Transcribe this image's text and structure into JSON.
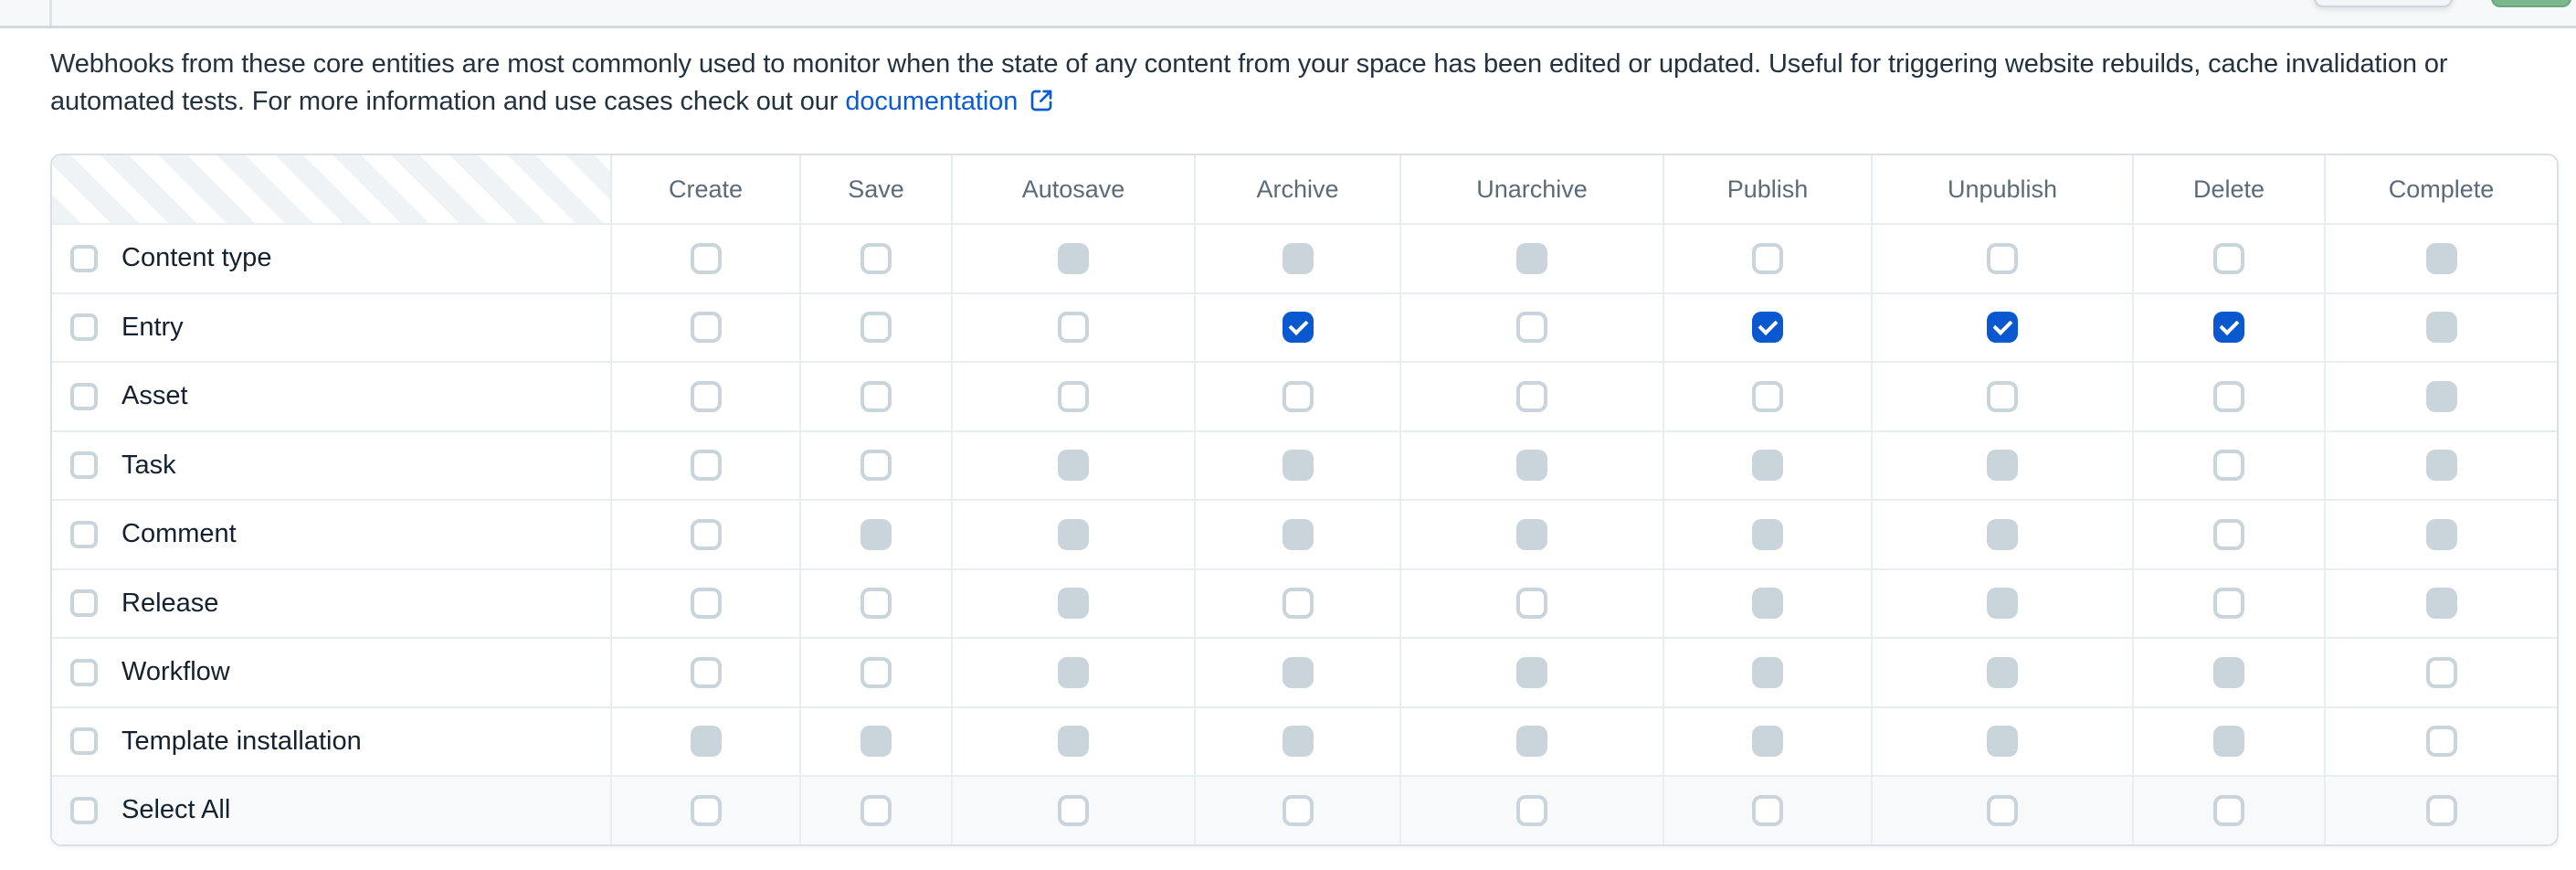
{
  "topbar": {
    "buttons": [
      {
        "name": "secondary-button-partial"
      },
      {
        "name": "primary-green-button-partial"
      }
    ]
  },
  "description": {
    "text": "Webhooks from these core entities are most commonly used to monitor when the state of any content from your space has been edited or updated. Useful for triggering website rebuilds, cache invalidation or automated tests. For more information and use cases check out our",
    "link_label": "documentation"
  },
  "table": {
    "columns": [
      "Create",
      "Save",
      "Autosave",
      "Archive",
      "Unarchive",
      "Publish",
      "Unpublish",
      "Delete",
      "Complete"
    ],
    "rows": [
      {
        "label": "Content type",
        "cells": [
          "unchecked",
          "unchecked",
          "disabled",
          "disabled",
          "disabled",
          "unchecked",
          "unchecked",
          "unchecked",
          "disabled"
        ]
      },
      {
        "label": "Entry",
        "cells": [
          "unchecked",
          "unchecked",
          "unchecked",
          "checked",
          "unchecked",
          "checked",
          "checked",
          "checked",
          "disabled"
        ]
      },
      {
        "label": "Asset",
        "cells": [
          "unchecked",
          "unchecked",
          "unchecked",
          "unchecked",
          "unchecked",
          "unchecked",
          "unchecked",
          "unchecked",
          "disabled"
        ]
      },
      {
        "label": "Task",
        "cells": [
          "unchecked",
          "unchecked",
          "disabled",
          "disabled",
          "disabled",
          "disabled",
          "disabled",
          "unchecked",
          "disabled"
        ]
      },
      {
        "label": "Comment",
        "cells": [
          "unchecked",
          "disabled",
          "disabled",
          "disabled",
          "disabled",
          "disabled",
          "disabled",
          "unchecked",
          "disabled"
        ]
      },
      {
        "label": "Release",
        "cells": [
          "unchecked",
          "unchecked",
          "disabled",
          "unchecked",
          "unchecked",
          "disabled",
          "disabled",
          "unchecked",
          "disabled"
        ]
      },
      {
        "label": "Workflow",
        "cells": [
          "unchecked",
          "unchecked",
          "disabled",
          "disabled",
          "disabled",
          "disabled",
          "disabled",
          "disabled",
          "unchecked"
        ]
      },
      {
        "label": "Template installation",
        "cells": [
          "disabled",
          "disabled",
          "disabled",
          "disabled",
          "disabled",
          "disabled",
          "disabled",
          "disabled",
          "unchecked"
        ]
      },
      {
        "label": "Select All",
        "cells": [
          "unchecked",
          "unchecked",
          "unchecked",
          "unchecked",
          "unchecked",
          "unchecked",
          "unchecked",
          "unchecked",
          "unchecked"
        ],
        "is_footer": true
      }
    ]
  },
  "colors": {
    "accent_blue": "#0a58d0",
    "link_blue": "#0b5bd3",
    "checkbox_gray": "#c9d4db",
    "header_text": "#5d6a78",
    "body_text": "#24313f",
    "entity_text": "#15212f",
    "footer_row_bg": "#f7f9fa",
    "topbar_bg": "#f6f8f9",
    "green_button": "#7ab78d"
  }
}
